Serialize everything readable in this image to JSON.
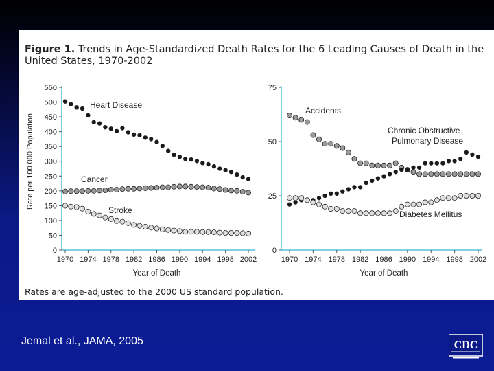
{
  "figure": {
    "title_label": "Figure 1.",
    "title_text": "Trends in Age-Standardized Death Rates for the 6 Leading Causes of Death in the United States, 1970-2002",
    "note": "Rates are age-adjusted to the 2000 US standard population."
  },
  "citation": "Jemal et al., JAMA, 2005",
  "logo": {
    "text": "CDC",
    "icon": "cdc-logo"
  },
  "colors": {
    "filled_marker": "#1a1a1a",
    "gray_marker": "#9a9a9a",
    "open_marker": "#e0e0e0",
    "axis": "#00a6c6",
    "trend_line": "#333333"
  },
  "chart_data": [
    {
      "type": "line",
      "ylabel": "Rate per 100 000 Population",
      "xlabel": "Year of Death",
      "ylim": [
        0,
        550
      ],
      "yticks": [
        0,
        50,
        100,
        150,
        200,
        250,
        300,
        350,
        400,
        450,
        500,
        550
      ],
      "xticks": [
        1970,
        1974,
        1978,
        1982,
        1986,
        1990,
        1994,
        1998,
        2002
      ],
      "x": [
        1970,
        1971,
        1972,
        1973,
        1974,
        1975,
        1976,
        1977,
        1978,
        1979,
        1980,
        1981,
        1982,
        1983,
        1984,
        1985,
        1986,
        1987,
        1988,
        1989,
        1990,
        1991,
        1992,
        1993,
        1994,
        1995,
        1996,
        1997,
        1998,
        1999,
        2000,
        2001,
        2002
      ],
      "series": [
        {
          "name": "Heart Disease",
          "marker": "filled",
          "values": [
            502,
            493,
            482,
            478,
            455,
            432,
            428,
            415,
            410,
            402,
            412,
            398,
            390,
            388,
            380,
            375,
            365,
            352,
            335,
            322,
            315,
            308,
            306,
            301,
            294,
            290,
            283,
            275,
            270,
            264,
            255,
            246,
            240
          ]
        },
        {
          "name": "Cancer",
          "marker": "gray",
          "values": [
            198,
            199,
            199,
            199,
            200,
            200,
            201,
            202,
            204,
            204,
            206,
            207,
            207,
            208,
            209,
            210,
            211,
            212,
            212,
            214,
            215,
            215,
            214,
            213,
            212,
            211,
            208,
            206,
            203,
            201,
            200,
            197,
            194
          ]
        },
        {
          "name": "Stroke",
          "marker": "open",
          "values": [
            150,
            147,
            145,
            140,
            130,
            122,
            117,
            110,
            105,
            98,
            96,
            91,
            85,
            82,
            79,
            76,
            73,
            70,
            68,
            66,
            64,
            62,
            62,
            62,
            61,
            61,
            60,
            59,
            58,
            58,
            58,
            57,
            56
          ]
        }
      ]
    },
    {
      "type": "line",
      "xlabel": "Year of Death",
      "ylim": [
        0,
        75
      ],
      "yticks": [
        0,
        25,
        50,
        75
      ],
      "xticks": [
        1970,
        1974,
        1978,
        1982,
        1986,
        1990,
        1994,
        1998,
        2002
      ],
      "x": [
        1970,
        1971,
        1972,
        1973,
        1974,
        1975,
        1976,
        1977,
        1978,
        1979,
        1980,
        1981,
        1982,
        1983,
        1984,
        1985,
        1986,
        1987,
        1988,
        1989,
        1990,
        1991,
        1992,
        1993,
        1994,
        1995,
        1996,
        1997,
        1998,
        1999,
        2000,
        2001,
        2002
      ],
      "series": [
        {
          "name": "Accidents",
          "marker": "gray",
          "values": [
            62,
            61,
            60,
            59,
            53,
            51,
            49,
            49,
            48,
            47,
            45,
            42,
            40,
            40,
            39,
            39,
            39,
            39,
            40,
            38,
            37,
            36,
            35,
            35,
            35,
            35,
            35,
            35,
            35,
            35,
            35,
            35,
            35
          ]
        },
        {
          "name": "Chronic Obstructive Pulmonary Disease",
          "marker": "filled",
          "values": [
            21,
            22,
            23,
            23,
            23,
            24,
            25,
            26,
            26,
            27,
            28,
            29,
            29,
            31,
            32,
            33,
            34,
            35,
            36,
            37,
            37,
            38,
            38,
            40,
            40,
            40,
            40,
            41,
            41,
            42,
            45,
            44,
            43
          ]
        },
        {
          "name": "Diabetes Mellitus",
          "marker": "open",
          "values": [
            24,
            24,
            24,
            23,
            22,
            21,
            20,
            19,
            19,
            18,
            18,
            18,
            17,
            17,
            17,
            17,
            17,
            17,
            18,
            20,
            21,
            21,
            21,
            22,
            22,
            23,
            24,
            24,
            24,
            25,
            25,
            25,
            25
          ]
        }
      ]
    }
  ]
}
